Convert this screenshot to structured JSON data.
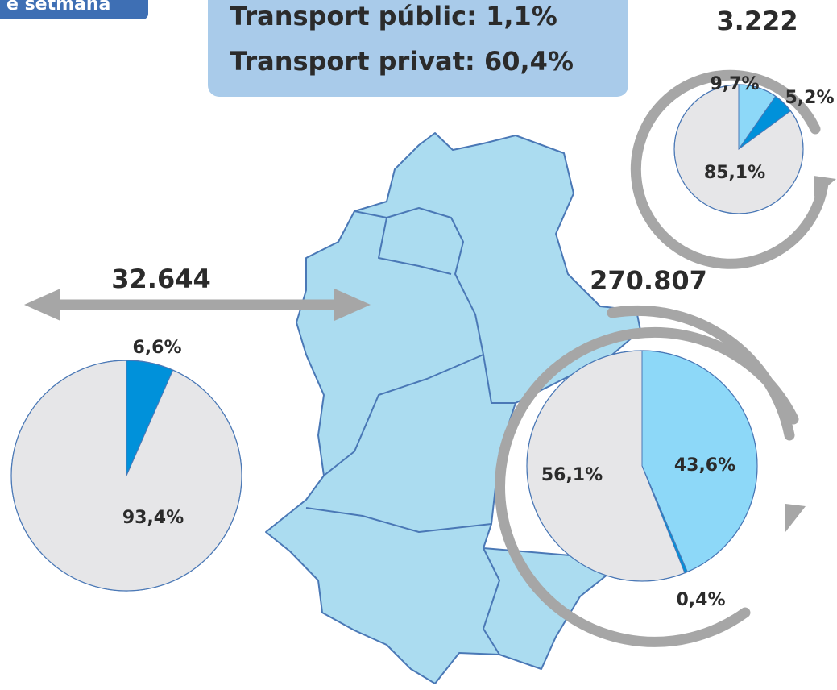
{
  "header_label": "e setmana",
  "info_box": [
    "Transport públic: 1,1%",
    "Transport privat: 60,4%"
  ],
  "chart_data": [
    {
      "type": "pie",
      "title": "3.222",
      "values": [
        9.7,
        5.2,
        85.1
      ],
      "value_labels": [
        "9,7%",
        "5,2%",
        "85,1%"
      ],
      "colors": [
        "#8dd8f8",
        "#0091da",
        "#e6e6e8"
      ]
    },
    {
      "type": "pie",
      "title": "32.644",
      "values": [
        6.6,
        93.4
      ],
      "value_labels": [
        "6,6%",
        "93,4%"
      ],
      "colors": [
        "#0091da",
        "#e6e6e8"
      ]
    },
    {
      "type": "pie",
      "title": "270.807",
      "values": [
        43.6,
        0.4,
        56.1
      ],
      "value_labels": [
        "43,6%",
        "0,4%",
        "56,1%"
      ],
      "colors": [
        "#8dd8f8",
        "#0091da",
        "#e6e6e8"
      ]
    }
  ]
}
